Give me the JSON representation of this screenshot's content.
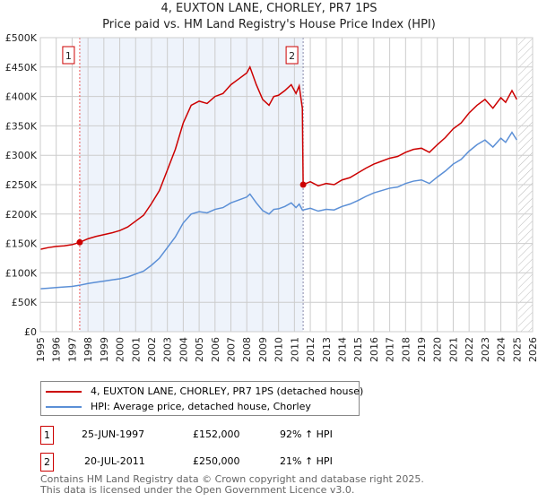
{
  "chart_data": {
    "type": "line",
    "title": "4, EUXTON LANE, CHORLEY, PR7 1PS",
    "subtitle": "Price paid vs. HM Land Registry's House Price Index (HPI)",
    "xlim": [
      1995,
      2026
    ],
    "ylim": [
      0,
      500000
    ],
    "x_ticks": [
      "1995",
      "1996",
      "1997",
      "1998",
      "1999",
      "2000",
      "2001",
      "2002",
      "2003",
      "2004",
      "2005",
      "2006",
      "2007",
      "2008",
      "2009",
      "2010",
      "2011",
      "2012",
      "2013",
      "2014",
      "2015",
      "2016",
      "2017",
      "2018",
      "2019",
      "2020",
      "2021",
      "2022",
      "2023",
      "2024",
      "2025",
      "2026"
    ],
    "y_ticks": [
      "£0",
      "£50K",
      "£100K",
      "£150K",
      "£200K",
      "£250K",
      "£300K",
      "£350K",
      "£400K",
      "£450K",
      "£500K"
    ],
    "grid": true,
    "series": [
      {
        "name": "4, EUXTON LANE, CHORLEY, PR7 1PS (detached house)",
        "color": "#cc0000",
        "x": [
          1995,
          1995.5,
          1996,
          1996.5,
          1997,
          1997.48,
          1998,
          1998.5,
          1999,
          1999.5,
          2000,
          2000.5,
          2001,
          2001.5,
          2002,
          2002.5,
          2003,
          2003.5,
          2004,
          2004.5,
          2005,
          2005.5,
          2006,
          2006.5,
          2007,
          2007.5,
          2008,
          2008.2,
          2008.6,
          2009,
          2009.4,
          2009.7,
          2010,
          2010.4,
          2010.8,
          2011.1,
          2011.3,
          2011.5,
          2011.55,
          2012,
          2012.5,
          2013,
          2013.5,
          2014,
          2014.5,
          2015,
          2015.5,
          2016,
          2016.5,
          2017,
          2017.5,
          2018,
          2018.5,
          2019,
          2019.5,
          2020,
          2020.5,
          2021,
          2021.5,
          2022,
          2022.5,
          2023,
          2023.5,
          2024,
          2024.3,
          2024.7,
          2025
        ],
        "y": [
          140000,
          143000,
          145000,
          146000,
          148000,
          152000,
          158000,
          162000,
          165000,
          168000,
          172000,
          178000,
          188000,
          198000,
          218000,
          240000,
          275000,
          310000,
          355000,
          385000,
          392000,
          388000,
          400000,
          405000,
          420000,
          430000,
          440000,
          450000,
          420000,
          395000,
          385000,
          400000,
          402000,
          410000,
          420000,
          405000,
          418000,
          380000,
          250000,
          255000,
          248000,
          252000,
          250000,
          258000,
          262000,
          270000,
          278000,
          285000,
          290000,
          295000,
          298000,
          305000,
          310000,
          312000,
          305000,
          318000,
          330000,
          345000,
          355000,
          372000,
          385000,
          395000,
          380000,
          398000,
          390000,
          410000,
          395000
        ]
      },
      {
        "name": "HPI: Average price, detached house, Chorley",
        "color": "#5b8fd6",
        "x": [
          1995,
          1995.5,
          1996,
          1996.5,
          1997,
          1997.48,
          1998,
          1998.5,
          1999,
          1999.5,
          2000,
          2000.5,
          2001,
          2001.5,
          2002,
          2002.5,
          2003,
          2003.5,
          2004,
          2004.5,
          2005,
          2005.5,
          2006,
          2006.5,
          2007,
          2007.5,
          2008,
          2008.2,
          2008.6,
          2009,
          2009.4,
          2009.7,
          2010,
          2010.4,
          2010.8,
          2011.1,
          2011.3,
          2011.5,
          2011.55,
          2012,
          2012.5,
          2013,
          2013.5,
          2014,
          2014.5,
          2015,
          2015.5,
          2016,
          2016.5,
          2017,
          2017.5,
          2018,
          2018.5,
          2019,
          2019.5,
          2020,
          2020.5,
          2021,
          2021.5,
          2022,
          2022.5,
          2023,
          2023.5,
          2024,
          2024.3,
          2024.7,
          2025
        ],
        "y": [
          73000,
          74000,
          75000,
          76000,
          77000,
          79000,
          82000,
          84000,
          86000,
          88000,
          90000,
          93000,
          98000,
          103000,
          113000,
          125000,
          143000,
          161000,
          185000,
          200000,
          204000,
          202000,
          208000,
          211000,
          219000,
          224000,
          229000,
          234000,
          219000,
          206000,
          200000,
          208000,
          209000,
          213000,
          219000,
          211000,
          217000,
          207000,
          207000,
          210000,
          205000,
          208000,
          207000,
          213000,
          217000,
          223000,
          230000,
          236000,
          240000,
          244000,
          246000,
          252000,
          256000,
          258000,
          252000,
          263000,
          273000,
          285000,
          293000,
          307000,
          318000,
          326000,
          314000,
          329000,
          322000,
          339000,
          326000
        ]
      }
    ],
    "sales": [
      {
        "label": "1",
        "x": 1997.48,
        "y": 152000,
        "date": "25-JUN-1997",
        "price": "£152,000",
        "hpi": "92% ↑ HPI"
      },
      {
        "label": "2",
        "x": 2011.55,
        "y": 250000,
        "date": "20-JUL-2011",
        "price": "£250,000",
        "hpi": "21% ↑ HPI"
      }
    ],
    "forecast_from": 2025.1
  },
  "footer": {
    "line1": "Contains HM Land Registry data © Crown copyright and database right 2025.",
    "line2": "This data is licensed under the Open Government Licence v3.0."
  }
}
